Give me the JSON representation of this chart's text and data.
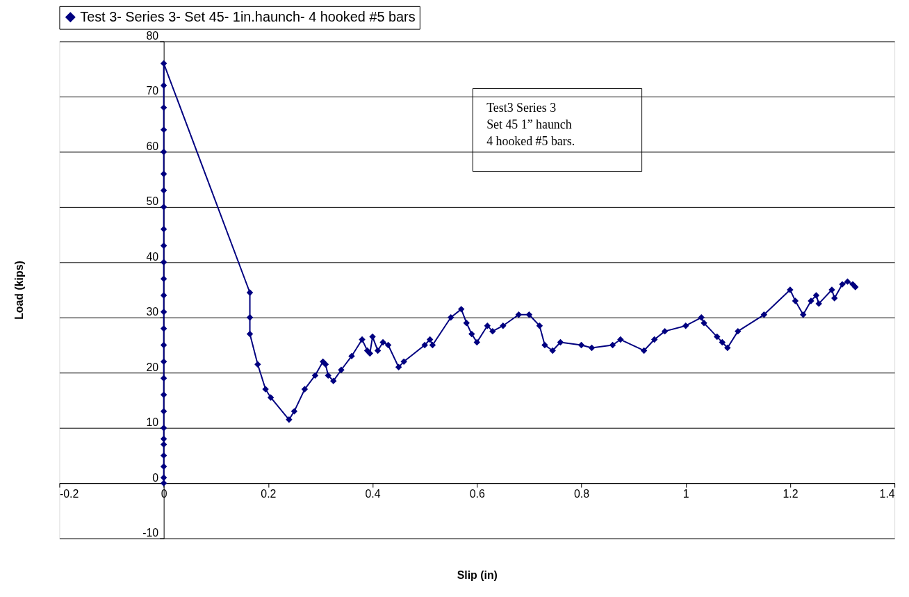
{
  "chart_data": {
    "type": "line",
    "xlabel": "Slip (in)",
    "ylabel": "Load (kips)",
    "xlim": [
      -0.2,
      1.4
    ],
    "ylim": [
      -10,
      80
    ],
    "xticks": [
      -0.2,
      0,
      0.2,
      0.4,
      0.6,
      0.8,
      1,
      1.2,
      1.4
    ],
    "yticks": [
      -10,
      0,
      10,
      20,
      30,
      40,
      50,
      60,
      70,
      80
    ],
    "grid": "y",
    "legend": "top",
    "marker": "diamond",
    "line_style": "solid",
    "annotations": [
      "Test3 Series 3\nSet 45 1” haunch\n4 hooked #5 bars."
    ],
    "series": [
      {
        "name": "Test 3- Series 3- Set 45- 1in.haunch- 4 hooked #5 bars",
        "color": "#000080",
        "x": [
          0,
          0,
          0,
          0,
          0,
          0,
          0,
          0,
          0,
          0,
          0,
          0,
          0,
          0,
          0,
          0,
          0,
          0,
          0,
          0,
          0,
          0,
          0,
          0,
          0,
          0,
          0,
          0.165,
          0.165,
          0.165,
          0.18,
          0.195,
          0.205,
          0.24,
          0.25,
          0.27,
          0.29,
          0.305,
          0.31,
          0.315,
          0.325,
          0.34,
          0.36,
          0.38,
          0.39,
          0.395,
          0.4,
          0.41,
          0.42,
          0.43,
          0.45,
          0.46,
          0.5,
          0.51,
          0.515,
          0.55,
          0.57,
          0.58,
          0.59,
          0.6,
          0.62,
          0.63,
          0.65,
          0.68,
          0.7,
          0.72,
          0.73,
          0.745,
          0.76,
          0.8,
          0.82,
          0.86,
          0.875,
          0.92,
          0.94,
          0.96,
          1.0,
          1.03,
          1.035,
          1.06,
          1.07,
          1.08,
          1.1,
          1.15,
          1.2,
          1.21,
          1.225,
          1.24,
          1.25,
          1.255,
          1.28,
          1.285,
          1.3,
          1.31,
          1.32,
          1.325
        ],
        "values": [
          0,
          1,
          3,
          5,
          7,
          8,
          10,
          13,
          16,
          19,
          22,
          25,
          28,
          31,
          34,
          37,
          40,
          43,
          46,
          50,
          53,
          56,
          60,
          64,
          68,
          72,
          76,
          34.5,
          30,
          27,
          21.5,
          17,
          15.5,
          11.5,
          13,
          17,
          19.5,
          22,
          21.5,
          19.5,
          18.5,
          20.5,
          23,
          26,
          24,
          23.5,
          26.5,
          24,
          25.5,
          25,
          21,
          22,
          25,
          26,
          25,
          30,
          31.5,
          29,
          27,
          25.5,
          28.5,
          27.5,
          28.5,
          30.5,
          30.5,
          28.5,
          25,
          24,
          25.5,
          25,
          24.5,
          25,
          26,
          24,
          26,
          27.5,
          28.5,
          30,
          29,
          26.5,
          25.5,
          24.5,
          27.5,
          30.5,
          35,
          33,
          30.5,
          33,
          34,
          32.5,
          35,
          33.5,
          36,
          36.5,
          36,
          35.5
        ]
      }
    ]
  }
}
